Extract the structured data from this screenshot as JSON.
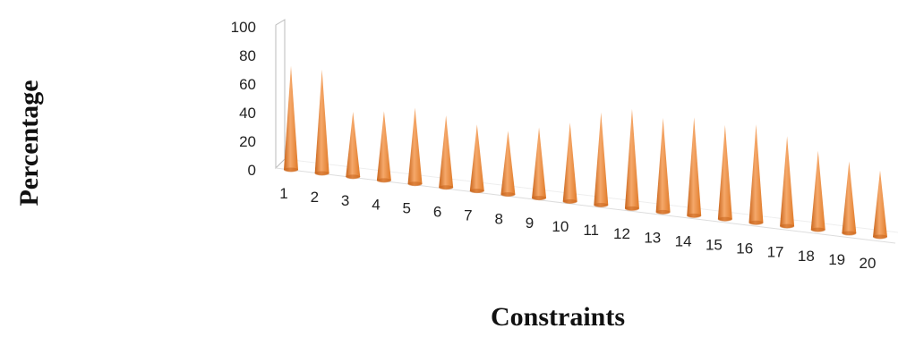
{
  "chart_data": {
    "type": "bar",
    "style": "3d-cone",
    "categories": [
      "1",
      "2",
      "3",
      "4",
      "5",
      "6",
      "7",
      "8",
      "9",
      "10",
      "11",
      "12",
      "13",
      "14",
      "15",
      "16",
      "17",
      "18",
      "19",
      "20"
    ],
    "values": [
      75,
      75,
      47,
      50,
      55,
      52,
      48,
      46,
      51,
      57,
      67,
      72,
      68,
      71,
      68,
      71,
      65,
      57,
      52,
      48
    ],
    "ylim": [
      0,
      100
    ],
    "yticks": [
      "0",
      "20",
      "40",
      "60",
      "80",
      "100"
    ],
    "xlabel": "Constraints",
    "ylabel": "Percentage",
    "grid": false,
    "legend": "none",
    "colors": {
      "cone_light": "#f5a86a",
      "cone_mid": "#f08a35",
      "cone_dark": "#c9651c",
      "axis": "#c8c8c8"
    }
  }
}
